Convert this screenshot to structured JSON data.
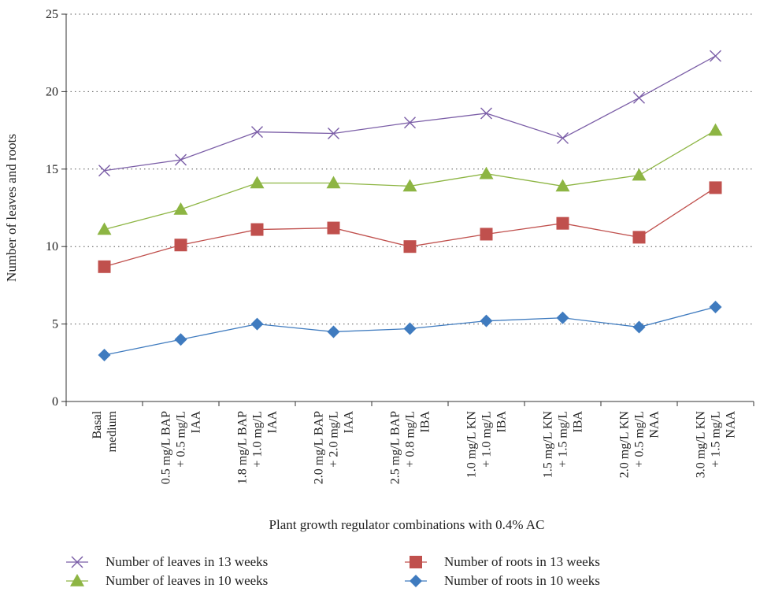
{
  "chart_data": {
    "type": "line",
    "xlabel": "Plant growth regulator combinations with 0.4% AC",
    "ylabel": "Number of leaves and roots",
    "ylim": [
      0,
      25
    ],
    "yticks": [
      0,
      5,
      10,
      15,
      20,
      25
    ],
    "grid": "horizontal dotted",
    "legend_position": "bottom",
    "categories": [
      [
        "Basal",
        "medium"
      ],
      [
        "0.5 mg/L BAP",
        "+ 0.5 mg/L",
        "IAA"
      ],
      [
        "1.8 mg/L BAP",
        "+ 1.0 mg/L",
        "IAA"
      ],
      [
        "2.0 mg/L BAP",
        "+ 2.0 mg/L",
        "IAA"
      ],
      [
        "2.5 mg/L BAP",
        "+ 0.8 mg/L",
        "IBA"
      ],
      [
        "1.0 mg/L KN",
        "+ 1.0 mg/L",
        "IBA"
      ],
      [
        "1.5 mg/L KN",
        "+ 1.5 mg/L",
        "IBA"
      ],
      [
        "2.0 mg/L KN",
        "+ 0.5 mg/L",
        "NAA"
      ],
      [
        "3.0 mg/L KN",
        "+ 1.5 mg/L",
        "NAA"
      ]
    ],
    "series": [
      {
        "name": "Number of leaves in 13 weeks",
        "color": "#7b5ea7",
        "marker": "x",
        "values": [
          14.9,
          15.6,
          17.4,
          17.3,
          18.0,
          18.6,
          17.0,
          19.6,
          22.3
        ]
      },
      {
        "name": "Number of leaves in 10 weeks",
        "color": "#8db543",
        "marker": "triangle",
        "values": [
          11.1,
          12.4,
          14.1,
          14.1,
          13.9,
          14.7,
          13.9,
          14.6,
          17.5
        ]
      },
      {
        "name": "Number of roots in 13 weeks",
        "color": "#c0504d",
        "marker": "square",
        "values": [
          8.7,
          10.1,
          11.1,
          11.2,
          10.0,
          10.8,
          11.5,
          10.6,
          13.8
        ]
      },
      {
        "name": "Number of roots in 10 weeks",
        "color": "#3f7bbf",
        "marker": "diamond",
        "values": [
          3.0,
          4.0,
          5.0,
          4.5,
          4.7,
          5.2,
          5.4,
          4.8,
          6.1
        ]
      }
    ],
    "legend_order": [
      0,
      2,
      1,
      3
    ]
  }
}
